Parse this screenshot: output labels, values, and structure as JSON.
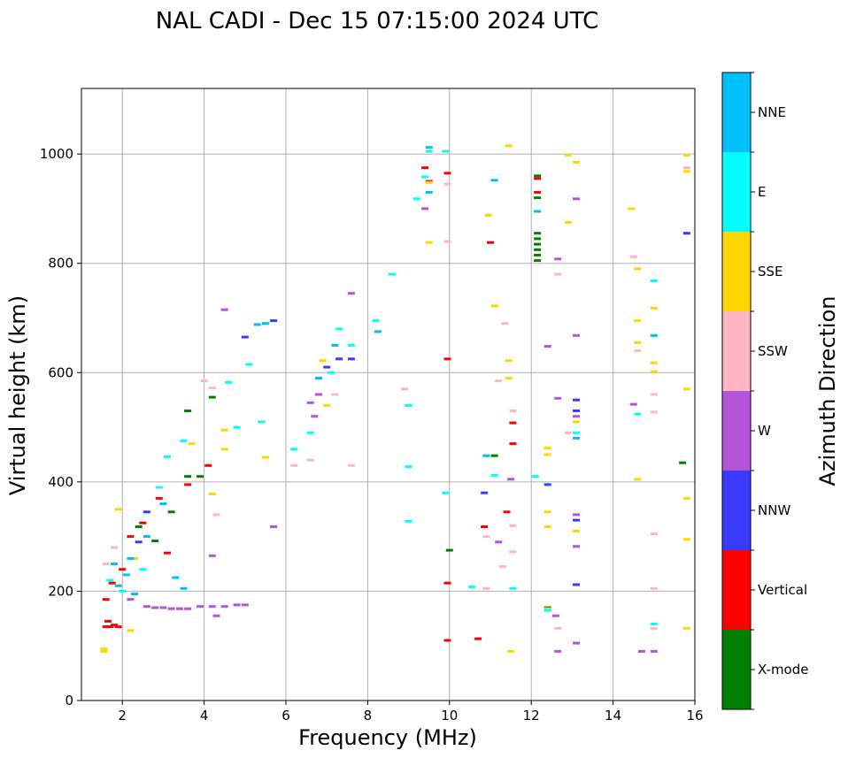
{
  "chart_data": {
    "type": "scatter",
    "title": "NAL CADI - Dec 15 07:15:00 2024 UTC",
    "xlabel": "Frequency (MHz)",
    "ylabel": "Virtual height (km)",
    "xlim": [
      1,
      16
    ],
    "ylim": [
      0,
      1120
    ],
    "xticks": [
      2,
      4,
      6,
      8,
      10,
      12,
      14,
      16
    ],
    "yticks": [
      0,
      200,
      400,
      600,
      800,
      1000
    ],
    "grid": true,
    "colorbar": {
      "label": "Azimuth Direction",
      "categories": [
        {
          "name": "X-mode",
          "color": "#008000"
        },
        {
          "name": "Vertical",
          "color": "#ff0000"
        },
        {
          "name": "NNW",
          "color": "#3a3aff"
        },
        {
          "name": "W",
          "color": "#b455d9"
        },
        {
          "name": "SSW",
          "color": "#ffb6c1"
        },
        {
          "name": "SSE",
          "color": "#ffd700"
        },
        {
          "name": "E",
          "color": "#00ffff"
        },
        {
          "name": "NNE",
          "color": "#00bfff"
        }
      ]
    },
    "series": [
      {
        "name": "X-mode",
        "points": [
          [
            3.6,
            530
          ],
          [
            3.9,
            410
          ],
          [
            4.2,
            555
          ],
          [
            10.0,
            275
          ],
          [
            11.1,
            448
          ],
          [
            12.15,
            805
          ],
          [
            12.15,
            815
          ],
          [
            12.15,
            825
          ],
          [
            12.15,
            835
          ],
          [
            12.15,
            845
          ],
          [
            12.15,
            855
          ],
          [
            12.15,
            960
          ],
          [
            12.15,
            920
          ],
          [
            12.4,
            170
          ],
          [
            15.7,
            435
          ],
          [
            3.2,
            345
          ],
          [
            2.8,
            292
          ],
          [
            2.4,
            318
          ],
          [
            3.6,
            410
          ]
        ]
      },
      {
        "name": "Vertical",
        "points": [
          [
            1.6,
            135
          ],
          [
            1.7,
            135
          ],
          [
            1.8,
            138
          ],
          [
            1.9,
            135
          ],
          [
            1.65,
            145
          ],
          [
            2.2,
            300
          ],
          [
            2.5,
            325
          ],
          [
            2.9,
            370
          ],
          [
            3.1,
            270
          ],
          [
            3.6,
            395
          ],
          [
            4.1,
            430
          ],
          [
            9.5,
            950
          ],
          [
            9.4,
            975
          ],
          [
            9.95,
            625
          ],
          [
            9.95,
            965
          ],
          [
            9.95,
            215
          ],
          [
            9.95,
            110
          ],
          [
            10.7,
            113
          ],
          [
            10.85,
            318
          ],
          [
            11.0,
            838
          ],
          [
            11.4,
            345
          ],
          [
            11.55,
            470
          ],
          [
            11.55,
            508
          ],
          [
            12.15,
            955
          ],
          [
            12.15,
            930
          ],
          [
            1.6,
            185
          ],
          [
            1.75,
            215
          ],
          [
            2.0,
            240
          ]
        ]
      },
      {
        "name": "NNW",
        "points": [
          [
            5.0,
            665
          ],
          [
            5.7,
            695
          ],
          [
            7.0,
            610
          ],
          [
            7.3,
            625
          ],
          [
            7.6,
            625
          ],
          [
            10.85,
            380
          ],
          [
            12.4,
            395
          ],
          [
            13.1,
            212
          ],
          [
            13.1,
            330
          ],
          [
            13.1,
            550
          ],
          [
            13.1,
            530
          ],
          [
            15.8,
            855
          ],
          [
            2.4,
            290
          ],
          [
            2.6,
            345
          ]
        ]
      },
      {
        "name": "W",
        "points": [
          [
            2.6,
            172
          ],
          [
            2.8,
            170
          ],
          [
            3.0,
            170
          ],
          [
            3.2,
            168
          ],
          [
            3.4,
            168
          ],
          [
            3.6,
            168
          ],
          [
            3.9,
            172
          ],
          [
            4.2,
            172
          ],
          [
            4.5,
            172
          ],
          [
            4.8,
            175
          ],
          [
            5.0,
            175
          ],
          [
            4.2,
            265
          ],
          [
            4.3,
            155
          ],
          [
            4.5,
            715
          ],
          [
            5.7,
            318
          ],
          [
            6.6,
            545
          ],
          [
            6.7,
            520
          ],
          [
            6.8,
            560
          ],
          [
            9.4,
            900
          ],
          [
            11.2,
            290
          ],
          [
            11.5,
            405
          ],
          [
            12.4,
            648
          ],
          [
            12.6,
            155
          ],
          [
            12.65,
            808
          ],
          [
            12.65,
            553
          ],
          [
            12.65,
            90
          ],
          [
            13.1,
            918
          ],
          [
            13.1,
            668
          ],
          [
            13.1,
            520
          ],
          [
            13.1,
            282
          ],
          [
            13.1,
            340
          ],
          [
            13.1,
            105
          ],
          [
            14.5,
            542
          ],
          [
            14.7,
            90
          ],
          [
            15.0,
            90
          ],
          [
            7.6,
            745
          ],
          [
            2.2,
            185
          ]
        ]
      },
      {
        "name": "SSW",
        "points": [
          [
            4.0,
            585
          ],
          [
            4.2,
            572
          ],
          [
            4.3,
            340
          ],
          [
            6.2,
            430
          ],
          [
            6.6,
            440
          ],
          [
            7.2,
            560
          ],
          [
            7.6,
            430
          ],
          [
            8.9,
            570
          ],
          [
            9.95,
            945
          ],
          [
            9.95,
            840
          ],
          [
            10.9,
            300
          ],
          [
            10.9,
            205
          ],
          [
            11.2,
            585
          ],
          [
            11.3,
            245
          ],
          [
            11.35,
            690
          ],
          [
            11.55,
            530
          ],
          [
            11.55,
            320
          ],
          [
            11.55,
            272
          ],
          [
            12.65,
            132
          ],
          [
            12.65,
            780
          ],
          [
            12.9,
            490
          ],
          [
            14.5,
            812
          ],
          [
            14.6,
            640
          ],
          [
            15.0,
            560
          ],
          [
            15.0,
            528
          ],
          [
            15.0,
            305
          ],
          [
            15.0,
            205
          ],
          [
            15.0,
            132
          ],
          [
            15.8,
            975
          ],
          [
            1.6,
            250
          ],
          [
            1.8,
            280
          ]
        ]
      },
      {
        "name": "SSE",
        "points": [
          [
            1.55,
            95
          ],
          [
            1.55,
            90
          ],
          [
            2.2,
            128
          ],
          [
            3.7,
            470
          ],
          [
            4.2,
            378
          ],
          [
            4.5,
            495
          ],
          [
            4.5,
            460
          ],
          [
            5.5,
            445
          ],
          [
            6.9,
            622
          ],
          [
            7.0,
            540
          ],
          [
            9.5,
            838
          ],
          [
            9.5,
            948
          ],
          [
            10.95,
            888
          ],
          [
            11.1,
            722
          ],
          [
            11.45,
            1015
          ],
          [
            11.45,
            622
          ],
          [
            11.45,
            590
          ],
          [
            11.5,
            90
          ],
          [
            12.4,
            318
          ],
          [
            12.4,
            345
          ],
          [
            12.4,
            462
          ],
          [
            12.4,
            450
          ],
          [
            12.4,
            168
          ],
          [
            12.9,
            998
          ],
          [
            12.9,
            875
          ],
          [
            13.1,
            985
          ],
          [
            13.1,
            510
          ],
          [
            13.1,
            310
          ],
          [
            14.45,
            900
          ],
          [
            14.6,
            790
          ],
          [
            14.6,
            695
          ],
          [
            14.6,
            655
          ],
          [
            14.6,
            405
          ],
          [
            15.0,
            718
          ],
          [
            15.0,
            618
          ],
          [
            15.0,
            602
          ],
          [
            15.8,
            998
          ],
          [
            15.8,
            968
          ],
          [
            15.8,
            570
          ],
          [
            15.8,
            370
          ],
          [
            15.8,
            295
          ],
          [
            15.8,
            132
          ],
          [
            1.9,
            350
          ],
          [
            2.3,
            260
          ]
        ]
      },
      {
        "name": "E",
        "points": [
          [
            2.5,
            240
          ],
          [
            2.9,
            390
          ],
          [
            3.1,
            446
          ],
          [
            3.5,
            475
          ],
          [
            4.6,
            582
          ],
          [
            4.8,
            500
          ],
          [
            5.1,
            615
          ],
          [
            5.4,
            510
          ],
          [
            6.2,
            460
          ],
          [
            6.6,
            490
          ],
          [
            7.1,
            600
          ],
          [
            7.3,
            680
          ],
          [
            7.6,
            650
          ],
          [
            8.2,
            695
          ],
          [
            8.6,
            780
          ],
          [
            9.0,
            540
          ],
          [
            9.0,
            428
          ],
          [
            9.0,
            328
          ],
          [
            9.2,
            918
          ],
          [
            9.4,
            958
          ],
          [
            9.5,
            1005
          ],
          [
            9.9,
            1005
          ],
          [
            9.9,
            380
          ],
          [
            10.55,
            208
          ],
          [
            10.9,
            448
          ],
          [
            11.1,
            412
          ],
          [
            11.55,
            205
          ],
          [
            12.1,
            410
          ],
          [
            12.4,
            165
          ],
          [
            13.1,
            490
          ],
          [
            14.6,
            524
          ],
          [
            15.0,
            768
          ],
          [
            15.0,
            668
          ],
          [
            15.0,
            140
          ],
          [
            1.7,
            220
          ],
          [
            2.0,
            200
          ]
        ]
      },
      {
        "name": "NNE",
        "points": [
          [
            1.9,
            210
          ],
          [
            2.1,
            230
          ],
          [
            2.3,
            195
          ],
          [
            2.6,
            300
          ],
          [
            3.0,
            360
          ],
          [
            3.3,
            225
          ],
          [
            3.5,
            205
          ],
          [
            5.3,
            688
          ],
          [
            5.5,
            690
          ],
          [
            6.8,
            590
          ],
          [
            7.2,
            650
          ],
          [
            8.25,
            675
          ],
          [
            9.5,
            1012
          ],
          [
            9.5,
            930
          ],
          [
            10.9,
            448
          ],
          [
            11.1,
            952
          ],
          [
            12.15,
            895
          ],
          [
            13.1,
            480
          ],
          [
            15.0,
            668
          ],
          [
            2.2,
            260
          ],
          [
            1.8,
            250
          ]
        ]
      }
    ]
  }
}
